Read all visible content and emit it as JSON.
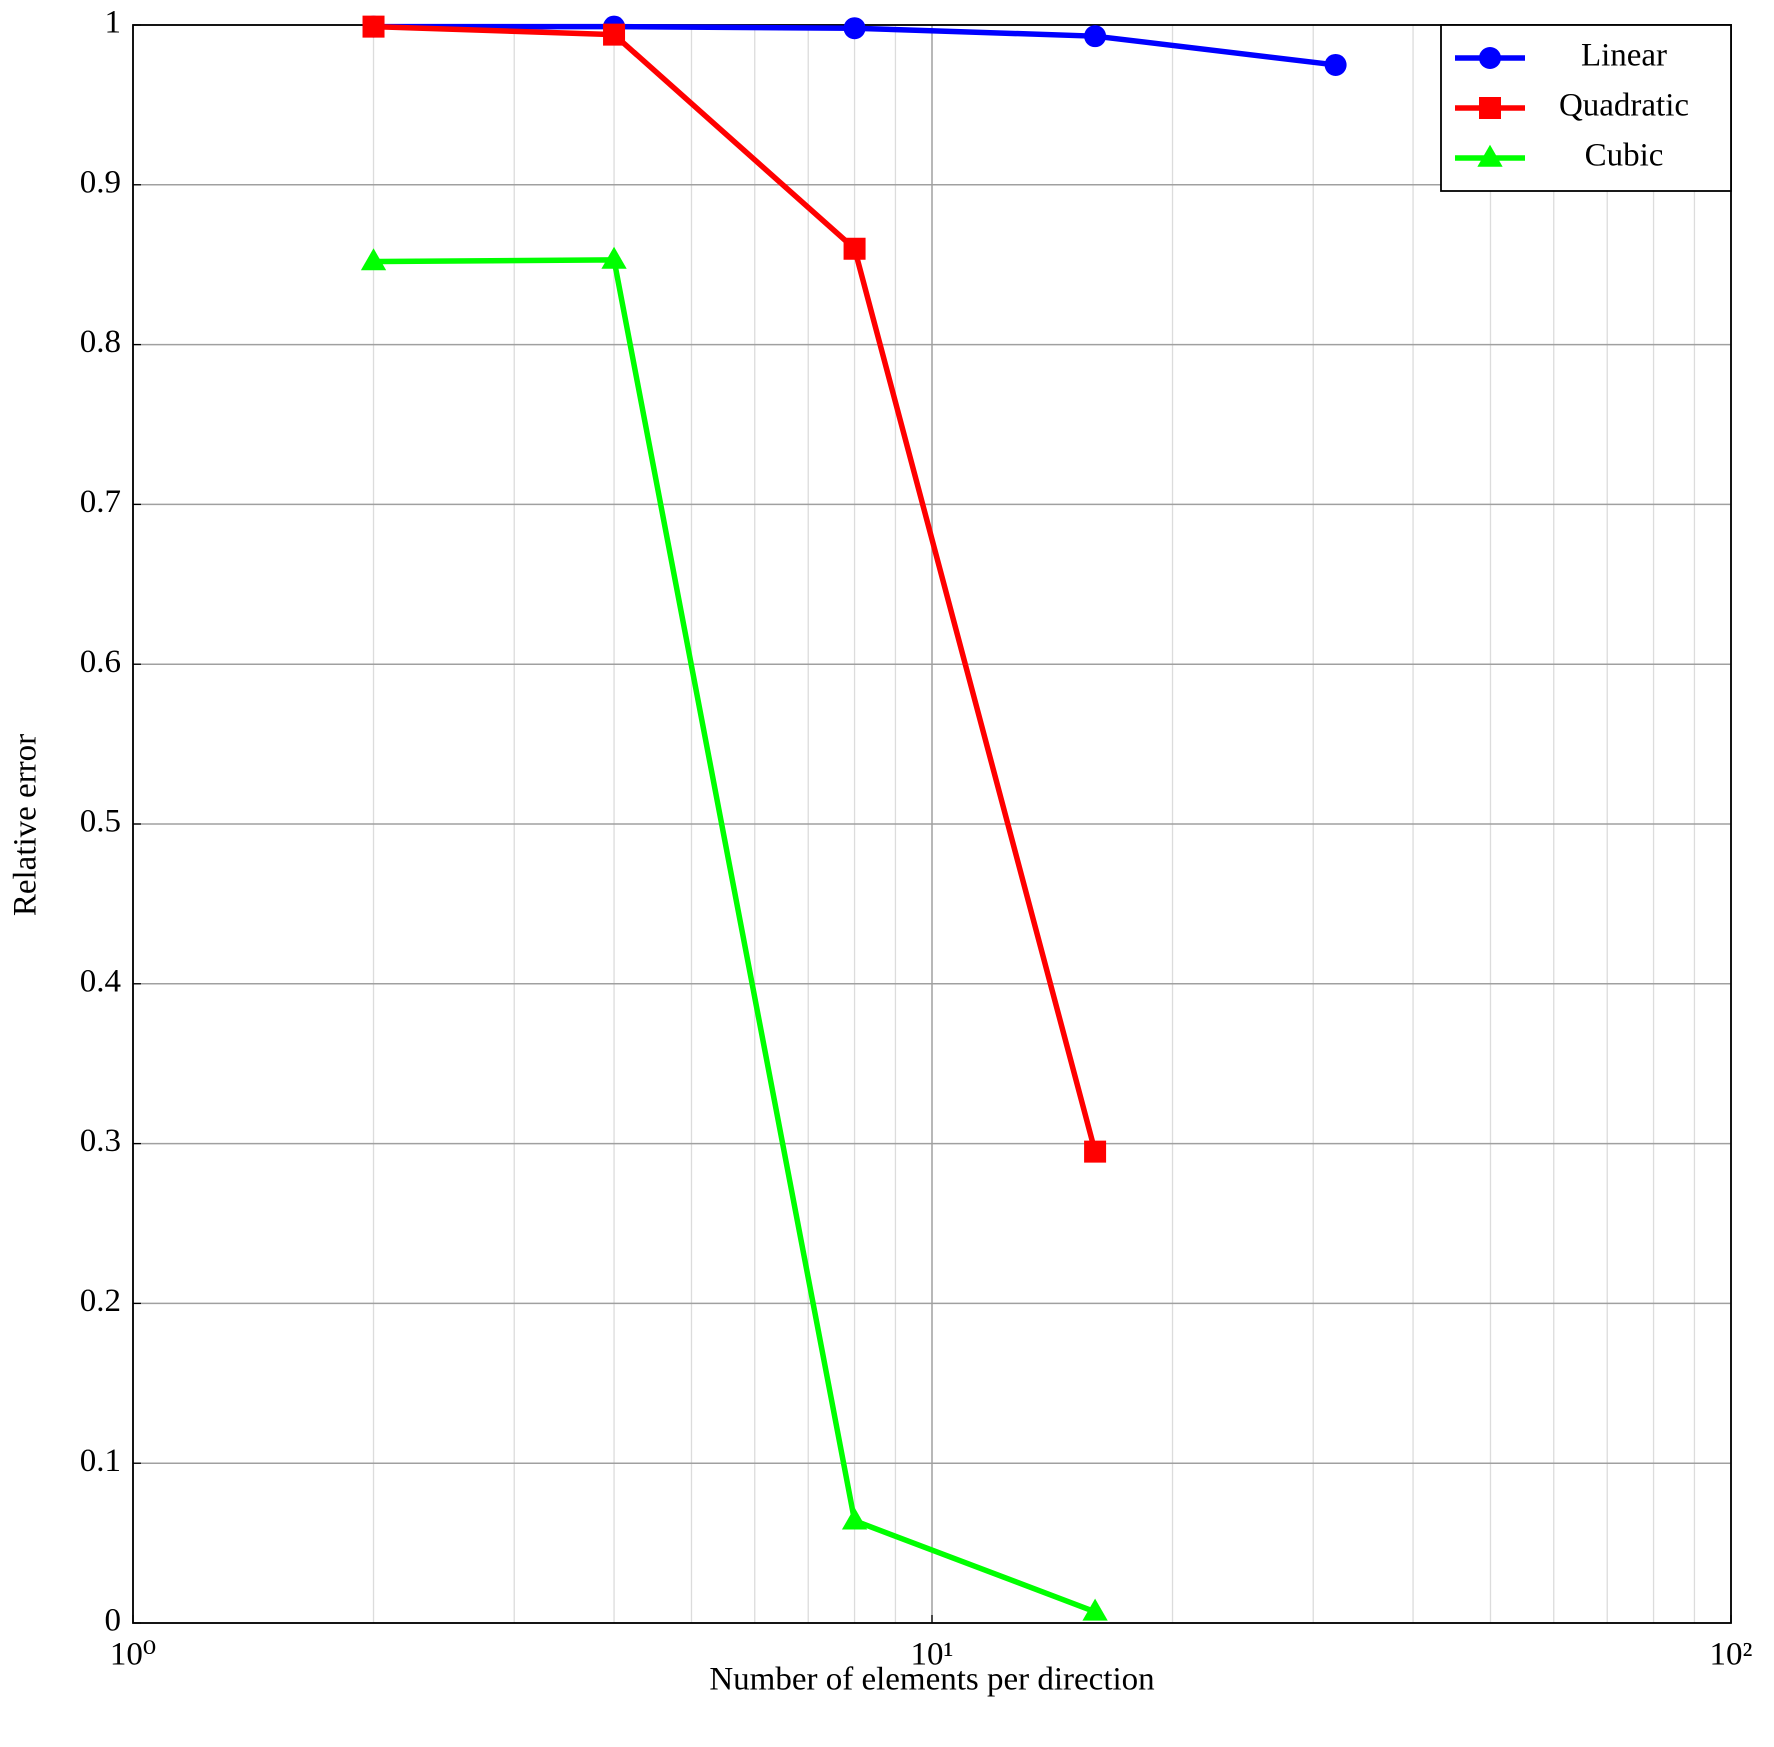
{
  "chart_data": {
    "type": "line",
    "xlabel": "Number of elements per direction",
    "ylabel": "Relative error",
    "xscale": "log",
    "xlim": [
      1,
      100
    ],
    "xticks": [
      {
        "value": 1,
        "label": "10⁰"
      },
      {
        "value": 10,
        "label": "10¹"
      },
      {
        "value": 100,
        "label": "10²"
      }
    ],
    "ylim": [
      0,
      1
    ],
    "yticks": [
      0,
      0.1,
      0.2,
      0.3,
      0.4,
      0.5,
      0.6,
      0.7,
      0.8,
      0.9,
      1
    ],
    "grid": true,
    "minor_grid": true,
    "legend": "top-right",
    "series": [
      {
        "name": "Linear",
        "color": "#0000ff",
        "marker": "circle",
        "x": [
          2,
          4,
          8,
          16,
          32
        ],
        "values": [
          0.999,
          0.999,
          0.998,
          0.993,
          0.975
        ]
      },
      {
        "name": "Quadratic",
        "color": "#ff0000",
        "marker": "square",
        "x": [
          2,
          4,
          8,
          16
        ],
        "values": [
          0.999,
          0.994,
          0.86,
          0.295
        ]
      },
      {
        "name": "Cubic",
        "color": "#00ff00",
        "marker": "triangle",
        "x": [
          2,
          4,
          8,
          16
        ],
        "values": [
          0.852,
          0.853,
          0.064,
          0.007
        ]
      }
    ]
  }
}
